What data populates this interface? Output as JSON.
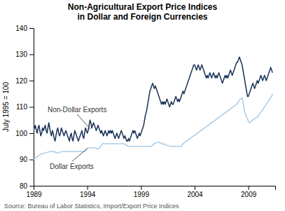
{
  "chart_data": {
    "type": "line",
    "title": "Non-Agricultural Export Price Indices",
    "subtitle": "in Dollar and Foreign Currencies",
    "ylabel": "July 1995 = 100",
    "source": "Source: Bureau of Labor Statistics, Import/Export Price Indices",
    "xlim": [
      1989,
      2011.5
    ],
    "ylim": [
      80,
      140
    ],
    "xticks": [
      1989,
      1994,
      1999,
      2004,
      2009
    ],
    "yticks": [
      80,
      90,
      100,
      110,
      120,
      130,
      140
    ],
    "grid": false,
    "annotations": [
      {
        "text": "Non-Dollar Exports",
        "x": 1990.3,
        "y": 108,
        "point_x": 1994.3,
        "point_y": 101.5
      },
      {
        "text": "Dollar Exports",
        "x": 1990.5,
        "y": 86.5,
        "point_x": 1994.0,
        "point_y": 94.2
      }
    ],
    "x": [
      1989.0,
      1989.083,
      1989.167,
      1989.25,
      1989.333,
      1989.417,
      1989.5,
      1989.583,
      1989.667,
      1989.75,
      1989.833,
      1989.917,
      1990.0,
      1990.083,
      1990.167,
      1990.25,
      1990.333,
      1990.417,
      1990.5,
      1990.583,
      1990.667,
      1990.75,
      1990.833,
      1990.917,
      1991.0,
      1991.083,
      1991.167,
      1991.25,
      1991.333,
      1991.417,
      1991.5,
      1991.583,
      1991.667,
      1991.75,
      1991.833,
      1991.917,
      1992.0,
      1992.083,
      1992.167,
      1992.25,
      1992.333,
      1992.417,
      1992.5,
      1992.583,
      1992.667,
      1992.75,
      1992.833,
      1992.917,
      1993.0,
      1993.083,
      1993.167,
      1993.25,
      1993.333,
      1993.417,
      1993.5,
      1993.583,
      1993.667,
      1993.75,
      1993.833,
      1993.917,
      1994.0,
      1994.083,
      1994.167,
      1994.25,
      1994.333,
      1994.417,
      1994.5,
      1994.583,
      1994.667,
      1994.75,
      1994.833,
      1994.917,
      1995.0,
      1995.083,
      1995.167,
      1995.25,
      1995.333,
      1995.417,
      1995.5,
      1995.583,
      1995.667,
      1995.75,
      1995.833,
      1995.917,
      1996.0,
      1996.083,
      1996.167,
      1996.25,
      1996.333,
      1996.417,
      1996.5,
      1996.583,
      1996.667,
      1996.75,
      1996.833,
      1996.917,
      1997.0,
      1997.083,
      1997.167,
      1997.25,
      1997.333,
      1997.417,
      1997.5,
      1997.583,
      1997.667,
      1997.75,
      1997.833,
      1997.917,
      1998.0,
      1998.083,
      1998.167,
      1998.25,
      1998.333,
      1998.417,
      1998.5,
      1998.583,
      1998.667,
      1998.75,
      1998.833,
      1998.917,
      1999.0,
      1999.083,
      1999.167,
      1999.25,
      1999.333,
      1999.417,
      1999.5,
      1999.583,
      1999.667,
      1999.75,
      1999.833,
      1999.917,
      2000.0,
      2000.083,
      2000.167,
      2000.25,
      2000.333,
      2000.417,
      2000.5,
      2000.583,
      2000.667,
      2000.75,
      2000.833,
      2000.917,
      2001.0,
      2001.083,
      2001.167,
      2001.25,
      2001.333,
      2001.417,
      2001.5,
      2001.583,
      2001.667,
      2001.75,
      2001.833,
      2001.917,
      2002.0,
      2002.083,
      2002.167,
      2002.25,
      2002.333,
      2002.417,
      2002.5,
      2002.583,
      2002.667,
      2002.75,
      2002.833,
      2002.917,
      2003.0,
      2003.083,
      2003.167,
      2003.25,
      2003.333,
      2003.417,
      2003.5,
      2003.583,
      2003.667,
      2003.75,
      2003.833,
      2003.917,
      2004.0,
      2004.083,
      2004.167,
      2004.25,
      2004.333,
      2004.417,
      2004.5,
      2004.583,
      2004.667,
      2004.75,
      2004.833,
      2004.917,
      2005.0,
      2005.083,
      2005.167,
      2005.25,
      2005.333,
      2005.417,
      2005.5,
      2005.583,
      2005.667,
      2005.75,
      2005.833,
      2005.917,
      2006.0,
      2006.083,
      2006.167,
      2006.25,
      2006.333,
      2006.417,
      2006.5,
      2006.583,
      2006.667,
      2006.75,
      2006.833,
      2006.917,
      2007.0,
      2007.083,
      2007.167,
      2007.25,
      2007.333,
      2007.417,
      2007.5,
      2007.583,
      2007.667,
      2007.75,
      2007.833,
      2007.917,
      2008.0,
      2008.083,
      2008.167,
      2008.25,
      2008.333,
      2008.417,
      2008.5,
      2008.583,
      2008.667,
      2008.75,
      2008.833,
      2008.917,
      2009.0,
      2009.083,
      2009.167,
      2009.25,
      2009.333,
      2009.417,
      2009.5,
      2009.583,
      2009.667,
      2009.75,
      2009.833,
      2009.917,
      2010.0,
      2010.083,
      2010.167,
      2010.25,
      2010.333,
      2010.417,
      2010.5,
      2010.583,
      2010.667,
      2010.75,
      2010.833,
      2010.917,
      2011.0,
      2011.083,
      2011.167,
      2011.25
    ],
    "series": [
      {
        "color": "#aacde8",
        "values": [
          90.0,
          90.2,
          90.5,
          90.8,
          91.0,
          91.2,
          91.5,
          91.7,
          92.0,
          92.1,
          92.2,
          92.3,
          92.4,
          92.5,
          92.6,
          92.7,
          92.8,
          92.9,
          93.0,
          93.0,
          93.0,
          93.0,
          93.0,
          93.0,
          92.8,
          92.6,
          92.5,
          92.5,
          92.6,
          92.7,
          92.8,
          92.9,
          93.0,
          93.0,
          93.0,
          93.0,
          93.0,
          93.0,
          93.0,
          93.0,
          93.0,
          93.0,
          93.0,
          93.0,
          93.0,
          93.0,
          93.0,
          93.0,
          93.0,
          93.0,
          93.0,
          93.0,
          93.0,
          93.0,
          93.0,
          93.0,
          93.0,
          93.0,
          93.5,
          94.0,
          94.2,
          94.4,
          94.5,
          94.5,
          94.5,
          94.5,
          94.5,
          94.5,
          94.5,
          94.3,
          94.2,
          94.0,
          94.0,
          94.2,
          94.5,
          95.0,
          95.5,
          96.0,
          96.0,
          96.0,
          96.0,
          96.0,
          96.0,
          96.0,
          96.0,
          96.0,
          96.0,
          96.0,
          96.0,
          96.0,
          96.0,
          96.0,
          96.0,
          96.0,
          96.0,
          96.0,
          96.0,
          96.0,
          96.0,
          96.0,
          96.0,
          96.0,
          95.8,
          95.6,
          95.4,
          95.2,
          95.0,
          95.0,
          95.0,
          95.0,
          95.0,
          95.0,
          95.0,
          95.0,
          95.0,
          95.0,
          95.0,
          95.0,
          95.0,
          95.0,
          95.0,
          95.0,
          95.0,
          95.0,
          95.0,
          95.0,
          95.0,
          95.0,
          95.0,
          95.0,
          95.0,
          95.0,
          95.2,
          95.5,
          95.8,
          96.0,
          96.2,
          96.3,
          96.4,
          96.5,
          96.5,
          96.5,
          96.3,
          96.0,
          96.0,
          96.0,
          95.8,
          95.6,
          95.5,
          95.4,
          95.3,
          95.2,
          95.1,
          95.0,
          95.0,
          95.0,
          95.0,
          95.0,
          95.0,
          95.0,
          95.0,
          95.0,
          95.0,
          95.0,
          95.0,
          95.0,
          95.5,
          96.0,
          96.2,
          96.5,
          96.8,
          97.0,
          97.2,
          97.5,
          97.8,
          98.0,
          98.2,
          98.5,
          98.8,
          99.0,
          99.2,
          99.5,
          99.8,
          100.0,
          100.2,
          100.5,
          100.8,
          101.0,
          101.2,
          101.5,
          101.8,
          102.0,
          102.2,
          102.5,
          102.8,
          103.0,
          103.2,
          103.5,
          103.8,
          104.0,
          104.2,
          104.5,
          104.8,
          105.0,
          105.2,
          105.5,
          105.8,
          106.0,
          106.2,
          106.5,
          106.8,
          107.0,
          107.2,
          107.5,
          107.8,
          108.0,
          108.2,
          108.5,
          108.8,
          109.0,
          109.2,
          109.5,
          109.8,
          110.0,
          110.2,
          110.5,
          110.8,
          111.0,
          111.5,
          112.0,
          112.5,
          113.0,
          113.2,
          113.5,
          112.0,
          110.0,
          108.0,
          107.0,
          106.0,
          105.5,
          104.5,
          104.0,
          104.2,
          104.5,
          104.8,
          105.0,
          105.2,
          105.5,
          105.8,
          106.0,
          106.2,
          106.5,
          107.0,
          107.5,
          108.0,
          108.5,
          109.0,
          109.5,
          110.0,
          110.5,
          111.0,
          111.5,
          112.0,
          112.5,
          113.0,
          113.5,
          114.0,
          115.0
        ]
      },
      {
        "color": "#1a3357",
        "values": [
          101,
          102,
          103,
          101,
          100,
          102,
          103,
          101,
          99,
          100,
          102,
          101,
          102,
          103,
          101,
          100,
          102,
          104,
          102,
          100,
          99,
          101,
          100,
          98,
          97,
          99,
          101,
          102,
          100,
          99,
          100,
          102,
          101,
          100,
          99,
          100,
          101,
          100,
          99,
          98,
          97,
          99,
          100,
          98,
          97,
          99,
          101,
          100,
          99,
          98,
          97,
          98,
          99,
          100,
          101,
          99,
          98,
          100,
          102,
          101,
          100,
          101,
          103,
          105,
          104,
          102,
          103,
          104,
          103,
          102,
          101,
          102,
          103,
          102,
          101,
          100,
          101,
          100,
          99,
          100,
          101,
          100,
          99,
          100,
          101,
          100,
          101,
          100,
          101,
          100,
          99,
          98,
          99,
          100,
          99,
          98,
          99,
          100,
          101,
          100,
          99,
          98,
          99,
          98,
          97,
          97,
          98,
          97,
          98,
          99,
          100,
          101,
          100,
          101,
          100,
          99,
          98,
          99,
          100,
          99,
          100,
          101,
          102,
          103,
          105,
          107,
          108,
          110,
          112,
          114,
          116,
          117,
          118,
          119,
          118,
          117,
          118,
          117,
          116,
          115,
          114,
          113,
          112,
          111,
          112,
          111,
          112,
          111,
          112,
          113,
          112,
          111,
          110,
          111,
          112,
          111,
          111,
          112,
          113,
          114,
          113,
          112,
          113,
          112,
          113,
          114,
          115,
          116,
          115,
          116,
          117,
          118,
          119,
          120,
          121,
          122,
          123,
          124,
          125,
          126,
          126,
          125,
          124,
          125,
          126,
          125,
          124,
          125,
          126,
          125,
          124,
          123,
          122,
          121,
          122,
          121,
          122,
          123,
          122,
          121,
          122,
          123,
          122,
          121,
          122,
          121,
          122,
          123,
          122,
          121,
          120,
          119,
          120,
          121,
          122,
          121,
          122,
          121,
          122,
          123,
          124,
          123,
          122,
          123,
          124,
          125,
          126,
          127,
          127,
          128,
          129,
          128,
          127,
          126,
          124,
          122,
          120,
          118,
          116,
          114,
          114,
          115,
          116,
          117,
          118,
          119,
          118,
          117,
          118,
          119,
          120,
          119,
          120,
          121,
          122,
          121,
          120,
          121,
          122,
          121,
          120,
          121,
          122,
          123,
          124,
          125,
          124,
          123
        ]
      }
    ]
  }
}
